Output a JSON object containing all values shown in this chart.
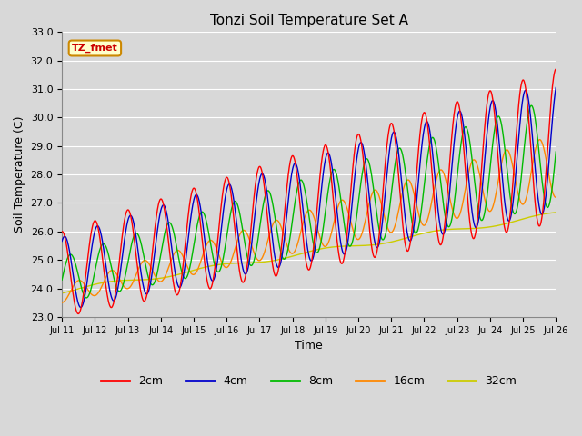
{
  "title": "Tonzi Soil Temperature Set A",
  "xlabel": "Time",
  "ylabel": "Soil Temperature (C)",
  "ylim": [
    23.0,
    33.0
  ],
  "yticks": [
    23.0,
    24.0,
    25.0,
    26.0,
    27.0,
    28.0,
    29.0,
    30.0,
    31.0,
    32.0,
    33.0
  ],
  "xtick_labels": [
    "Jul 11",
    "Jul 12",
    "Jul 13",
    "Jul 14",
    "Jul 15",
    "Jul 16",
    "Jul 17",
    "Jul 18",
    "Jul 19",
    "Jul 20",
    "Jul 21",
    "Jul 22",
    "Jul 23",
    "Jul 24",
    "Jul 25",
    "Jul 26"
  ],
  "series_colors": {
    "2cm": "#ff0000",
    "4cm": "#0000cc",
    "8cm": "#00bb00",
    "16cm": "#ff8800",
    "32cm": "#cccc00"
  },
  "legend_label": "TZ_fmet",
  "annotation_bg": "#ffffcc",
  "annotation_border": "#cc8800",
  "annotation_text_color": "#cc0000",
  "plot_bg": "#d8d8d8",
  "grid_color": "#ffffff",
  "n_days": 15,
  "pts_per_day": 96
}
